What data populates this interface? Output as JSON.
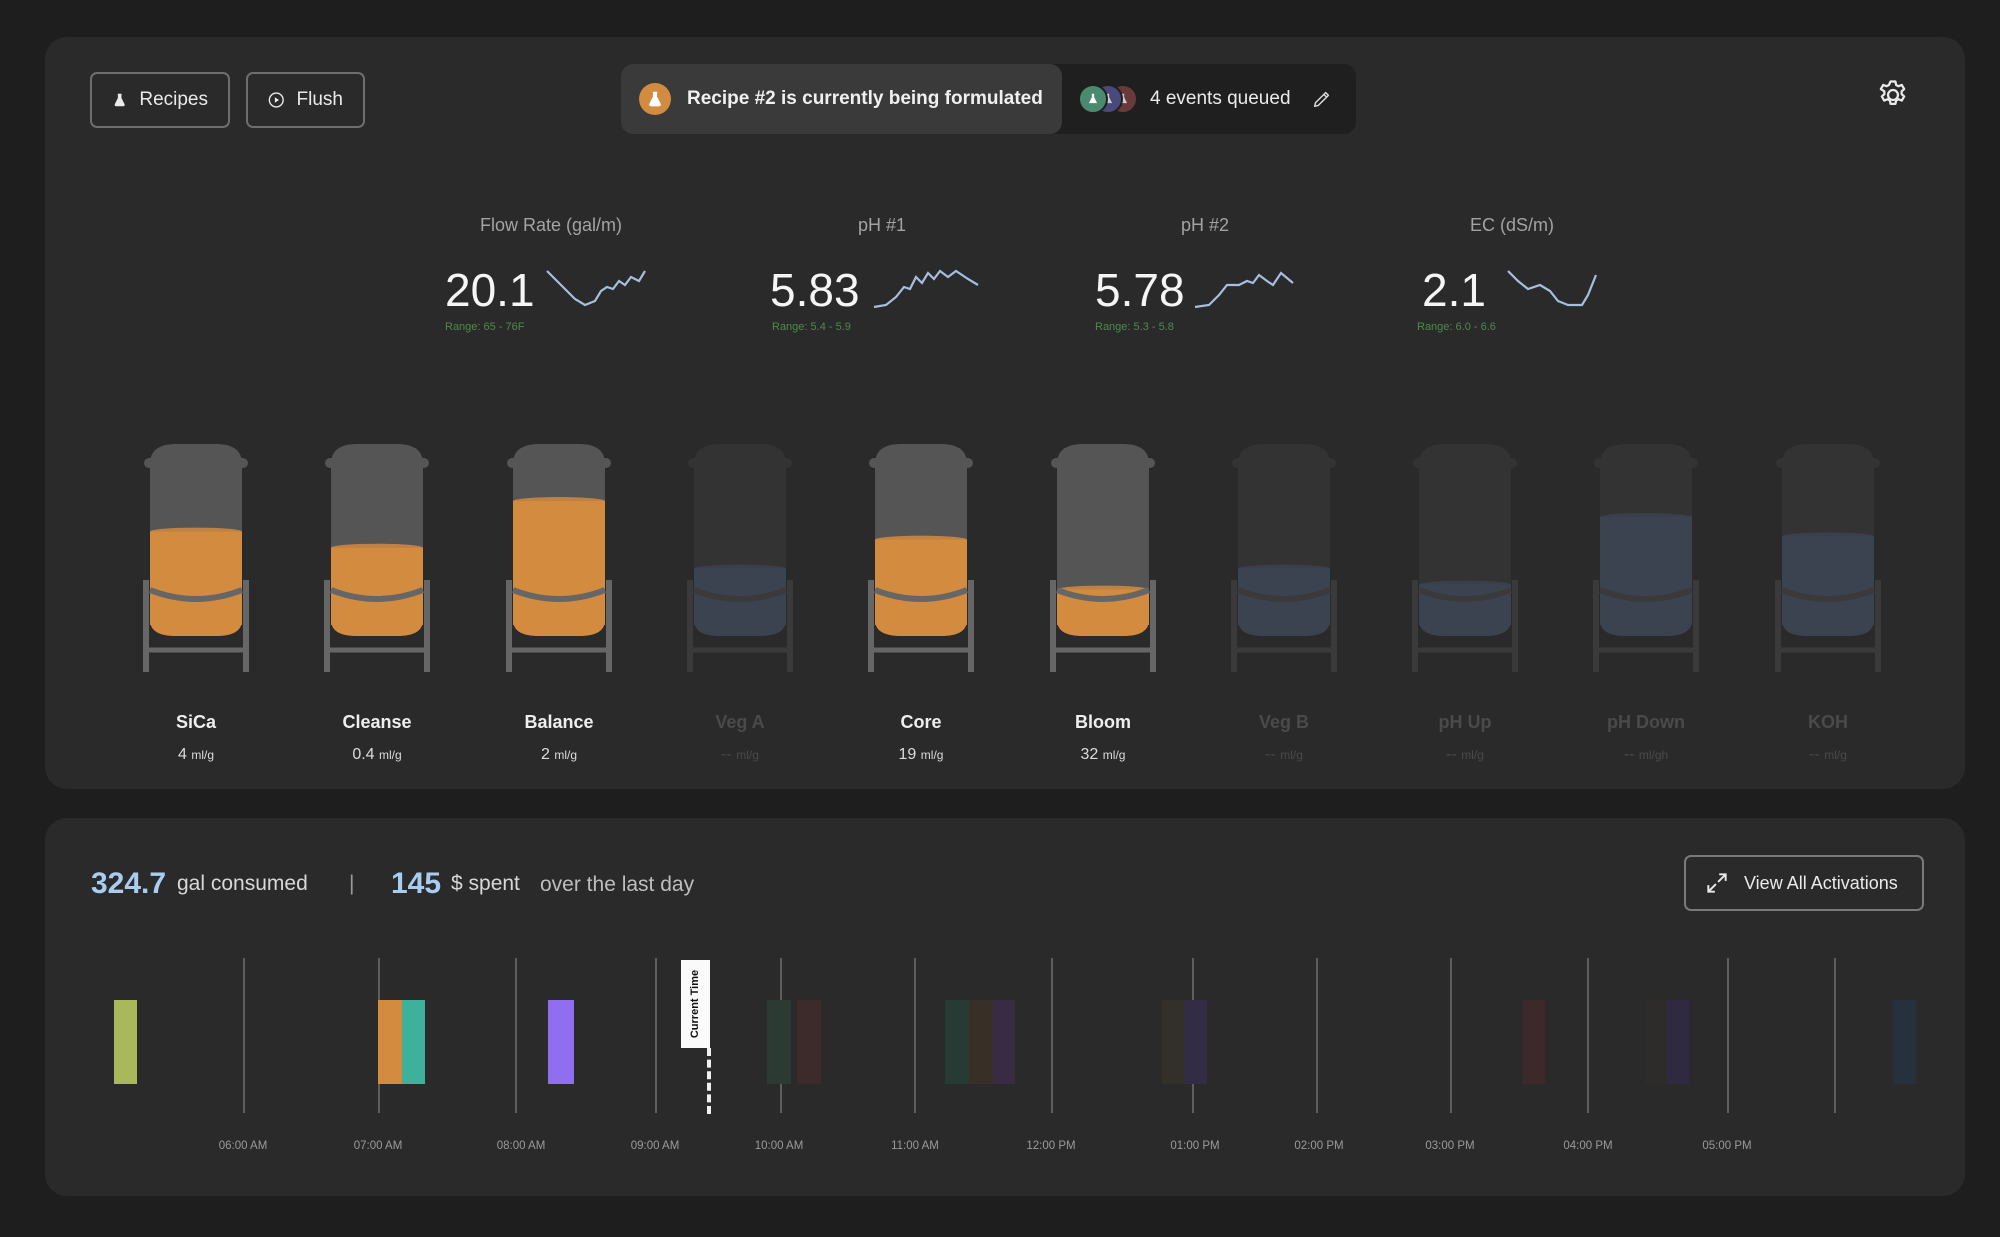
{
  "toolbar": {
    "recipes_label": "Recipes",
    "flush_label": "Flush"
  },
  "status": {
    "text": "Recipe #2 is currently being formulated",
    "queue_text": "4 events queued"
  },
  "metrics": [
    {
      "label": "Flow Rate (gal/m)",
      "value": "20.1",
      "range": "Range: 65 - 76F"
    },
    {
      "label": "pH #1",
      "value": "5.83",
      "range": "Range: 5.4 - 5.9"
    },
    {
      "label": "pH #2",
      "value": "5.78",
      "range": "Range: 5.3 - 5.8"
    },
    {
      "label": "EC (dS/m)",
      "value": "2.1",
      "range": "Range: 6.0 - 6.6"
    }
  ],
  "tanks": [
    {
      "name": "SiCa",
      "rate": "4",
      "unit": "ml/g",
      "active": true,
      "level": 0.58
    },
    {
      "name": "Cleanse",
      "rate": "0.4",
      "unit": "ml/g",
      "active": true,
      "level": 0.48
    },
    {
      "name": "Balance",
      "rate": "2",
      "unit": "ml/g",
      "active": true,
      "level": 0.77
    },
    {
      "name": "Veg A",
      "rate": "--",
      "unit": "ml/g",
      "active": false,
      "level": 0.35
    },
    {
      "name": "Core",
      "rate": "19",
      "unit": "ml/g",
      "active": true,
      "level": 0.53
    },
    {
      "name": "Bloom",
      "rate": "32",
      "unit": "ml/g",
      "active": true,
      "level": 0.22
    },
    {
      "name": "Veg B",
      "rate": "--",
      "unit": "ml/g",
      "active": false,
      "level": 0.35
    },
    {
      "name": "pH Up",
      "rate": "--",
      "unit": "ml/g",
      "active": false,
      "level": 0.25
    },
    {
      "name": "pH Down",
      "rate": "--",
      "unit": "ml/gh",
      "active": false,
      "level": 0.67
    },
    {
      "name": "KOH",
      "rate": "--",
      "unit": "ml/g",
      "active": false,
      "level": 0.55
    }
  ],
  "summary": {
    "gal_value": "324.7",
    "gal_label": "gal consumed",
    "separator": "|",
    "spent_value": "145",
    "spent_label": "$ spent",
    "period": "over the last day"
  },
  "view_all_label": "View All Activations",
  "timeline": {
    "current_time_label": "Current Time",
    "ticks": [
      "06:00 AM",
      "07:00 AM",
      "08:00 AM",
      "09:00 AM",
      "10:00 AM",
      "11:00 AM",
      "12:00 PM",
      "01:00 PM",
      "02:00 PM",
      "03:00 PM",
      "04:00 PM",
      "05:00 PM"
    ]
  },
  "colors": {
    "accent": "#a9cdf0",
    "fill_active": "#d28b3f",
    "fill_inactive": "#3c4350",
    "range_text": "#4e8a4e"
  }
}
